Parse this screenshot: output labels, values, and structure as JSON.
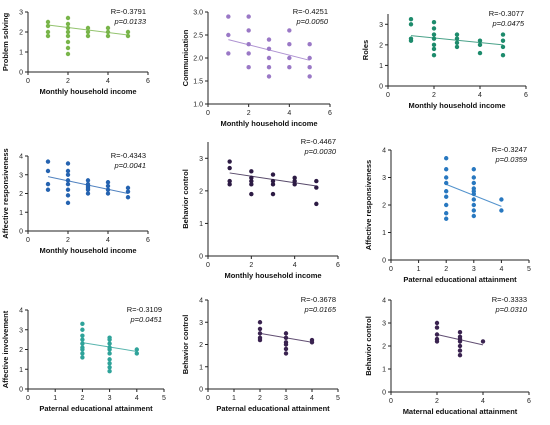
{
  "chart_data": [
    {
      "type": "scatter",
      "ylabel": "Problem solving",
      "xlabel": "Monthly household income",
      "xlim": [
        0,
        6
      ],
      "ylim": [
        0,
        3
      ],
      "xticks": [
        "0",
        "2",
        "4",
        "6"
      ],
      "yticks": [
        "0",
        "1",
        "2",
        "3"
      ],
      "stats": [
        "R=-0.3791",
        "p=0.0133"
      ],
      "color": "#79b54a",
      "x": [
        1,
        1,
        1,
        1,
        2,
        2,
        2,
        2,
        2,
        2,
        2,
        2,
        3,
        3,
        3,
        4,
        4,
        4,
        5,
        5
      ],
      "y": [
        2.5,
        2.3,
        2.0,
        1.8,
        2.7,
        2.4,
        2.2,
        2.0,
        1.8,
        1.5,
        1.2,
        0.9,
        2.2,
        2.0,
        1.8,
        2.2,
        2.0,
        1.8,
        2.0,
        1.8
      ],
      "fit": [
        [
          1,
          2.35
        ],
        [
          5,
          1.85
        ]
      ]
    },
    {
      "type": "scatter",
      "ylabel": "Communication",
      "xlabel": "Monthly household income",
      "xlim": [
        0,
        6
      ],
      "ylim": [
        1,
        3
      ],
      "xticks": [
        "0",
        "2",
        "4",
        "6"
      ],
      "yticks": [
        "1.0",
        "1.5",
        "2.0",
        "2.5",
        "3.0"
      ],
      "stats": [
        "R=-0.4251",
        "p=0.0050"
      ],
      "color": "#9a78c6",
      "x": [
        1,
        1,
        1,
        2,
        2,
        2,
        2,
        2,
        3,
        3,
        3,
        3,
        3,
        4,
        4,
        4,
        4,
        5,
        5,
        5,
        5
      ],
      "y": [
        2.9,
        2.5,
        2.1,
        2.9,
        2.6,
        2.3,
        2.1,
        1.8,
        2.4,
        2.2,
        2.0,
        1.8,
        1.6,
        2.6,
        2.3,
        2.0,
        1.8,
        2.3,
        2.0,
        1.8,
        1.6
      ],
      "fit": [
        [
          1,
          2.4
        ],
        [
          5,
          1.95
        ]
      ]
    },
    {
      "type": "scatter",
      "ylabel": "Roles",
      "xlabel": "Monthly household income",
      "xlim": [
        0,
        6
      ],
      "ylim": [
        0,
        3.5
      ],
      "xticks": [
        "0",
        "2",
        "4",
        "6"
      ],
      "yticks": [
        "0",
        "1",
        "2",
        "3"
      ],
      "stats": [
        "R=-0.3077",
        "p=0.0475"
      ],
      "color": "#1d8b6c",
      "x": [
        1,
        1,
        1,
        1,
        2,
        2,
        2,
        2,
        2,
        2,
        2,
        3,
        3,
        3,
        3,
        4,
        4,
        4,
        5,
        5,
        5,
        5
      ],
      "y": [
        3.25,
        3.0,
        2.3,
        2.2,
        3.1,
        2.8,
        2.5,
        2.3,
        2.0,
        1.8,
        1.5,
        2.5,
        2.3,
        2.1,
        1.9,
        2.2,
        2.0,
        1.6,
        2.5,
        2.2,
        1.9,
        1.5
      ],
      "fit": [
        [
          1,
          2.45
        ],
        [
          5,
          2.0
        ]
      ]
    },
    {
      "type": "scatter",
      "ylabel": "Affective responsiveness",
      "xlabel": "Monthly household income",
      "xlim": [
        0,
        6
      ],
      "ylim": [
        0,
        4
      ],
      "xticks": [
        "0",
        "2",
        "4",
        "6"
      ],
      "yticks": [
        "0",
        "1",
        "2",
        "3",
        "4"
      ],
      "stats": [
        "R=-0.4343",
        "p=0.0041"
      ],
      "color": "#2563b0",
      "x": [
        1,
        1,
        1,
        1,
        2,
        2,
        2,
        2,
        2,
        2,
        2,
        2,
        3,
        3,
        3,
        3,
        3,
        3,
        4,
        4,
        4,
        4,
        5,
        5,
        5
      ],
      "y": [
        3.7,
        3.2,
        2.5,
        2.2,
        3.6,
        3.2,
        3.0,
        2.7,
        2.5,
        2.2,
        1.9,
        1.5,
        2.7,
        2.5,
        2.4,
        2.3,
        2.2,
        2.0,
        2.6,
        2.4,
        2.2,
        2.0,
        2.3,
        2.1,
        1.8
      ],
      "fit": [
        [
          1,
          2.9
        ],
        [
          5,
          2.0
        ]
      ]
    },
    {
      "type": "scatter",
      "ylabel": "Behavior control",
      "xlabel": "Monthly household income",
      "xlim": [
        0,
        6
      ],
      "ylim": [
        0,
        3.5
      ],
      "xticks": [
        "0",
        "2",
        "4",
        "6"
      ],
      "yticks": [
        "0",
        "1",
        "2",
        "3"
      ],
      "stats": [
        "R=-0.4467",
        "p=0.0030"
      ],
      "color": "#2d1b44",
      "x": [
        1,
        1,
        1,
        1,
        2,
        2,
        2,
        2,
        2,
        3,
        3,
        3,
        3,
        4,
        4,
        4,
        5,
        5,
        5
      ],
      "y": [
        2.9,
        2.7,
        2.3,
        2.2,
        2.6,
        2.4,
        2.3,
        2.2,
        1.9,
        2.5,
        2.3,
        2.2,
        1.9,
        2.4,
        2.3,
        2.2,
        2.3,
        2.1,
        1.6
      ],
      "fit": [
        [
          1,
          2.55
        ],
        [
          5,
          2.15
        ]
      ]
    },
    {
      "type": "scatter",
      "ylabel": "Affective responsiveness",
      "xlabel": "Paternal educational attainment",
      "xlim": [
        0,
        5
      ],
      "ylim": [
        0,
        4
      ],
      "xticks": [
        "0",
        "1",
        "2",
        "3",
        "4",
        "5"
      ],
      "yticks": [
        "0",
        "1",
        "2",
        "3",
        "4"
      ],
      "stats": [
        "R=-0.3247",
        "p=0.0359"
      ],
      "color": "#2878c0",
      "x": [
        2,
        2,
        2,
        2,
        2,
        2,
        2,
        2,
        2,
        3,
        3,
        3,
        3,
        3,
        3,
        3,
        3,
        3,
        3,
        4,
        4
      ],
      "y": [
        3.7,
        3.3,
        3.0,
        2.8,
        2.5,
        2.3,
        2.0,
        1.7,
        1.5,
        3.3,
        3.0,
        2.8,
        2.6,
        2.5,
        2.4,
        2.2,
        2.0,
        1.8,
        1.6,
        2.2,
        1.8
      ],
      "fit": [
        [
          2,
          2.75
        ],
        [
          4,
          1.95
        ]
      ]
    },
    {
      "type": "scatter",
      "ylabel": "Affective involvement",
      "xlabel": "Paternal educational attainment",
      "xlim": [
        0,
        5
      ],
      "ylim": [
        0,
        4
      ],
      "xticks": [
        "0",
        "1",
        "2",
        "3",
        "4",
        "5"
      ],
      "yticks": [
        "0",
        "1",
        "2",
        "3",
        "4"
      ],
      "stats": [
        "R=-0.3109",
        "p=0.0451"
      ],
      "color": "#2fa39a",
      "x": [
        2,
        2,
        2,
        2,
        2,
        2,
        2,
        2,
        2,
        3,
        3,
        3,
        3,
        3,
        3,
        3,
        3,
        3,
        3,
        4,
        4
      ],
      "y": [
        3.3,
        3.0,
        2.7,
        2.5,
        2.3,
        2.1,
        2.0,
        1.8,
        1.6,
        2.6,
        2.5,
        2.3,
        2.1,
        2.0,
        1.8,
        1.5,
        1.3,
        1.1,
        0.9,
        2.0,
        1.8
      ],
      "fit": [
        [
          2,
          2.35
        ],
        [
          4,
          1.9
        ]
      ]
    },
    {
      "type": "scatter",
      "ylabel": "Behavior control",
      "xlabel": "Paternal educational attainment",
      "xlim": [
        0,
        5
      ],
      "ylim": [
        0,
        4
      ],
      "xticks": [
        "0",
        "1",
        "2",
        "3",
        "4",
        "5"
      ],
      "yticks": [
        "0",
        "1",
        "2",
        "3",
        "4"
      ],
      "stats": [
        "R=-0.3678",
        "p=0.0165"
      ],
      "color": "#3a2350",
      "x": [
        2,
        2,
        2,
        2,
        2,
        3,
        3,
        3,
        3,
        3,
        3,
        4,
        4
      ],
      "y": [
        3.0,
        2.7,
        2.5,
        2.3,
        2.2,
        2.5,
        2.3,
        2.1,
        2.0,
        1.8,
        1.6,
        2.2,
        2.1
      ],
      "fit": [
        [
          2,
          2.5
        ],
        [
          4,
          2.1
        ]
      ]
    },
    {
      "type": "scatter",
      "ylabel": "Behavior control",
      "xlabel": "Maternal educational attainment",
      "xlim": [
        0,
        6
      ],
      "ylim": [
        0,
        4
      ],
      "xticks": [
        "0",
        "2",
        "4",
        "6"
      ],
      "yticks": [
        "0",
        "1",
        "2",
        "3",
        "4"
      ],
      "stats": [
        "R=-0.3333",
        "p=0.0310"
      ],
      "color": "#3a2350",
      "x": [
        2,
        2,
        2,
        2,
        2,
        3,
        3,
        3,
        3,
        3,
        3,
        3,
        4
      ],
      "y": [
        3.0,
        2.8,
        2.5,
        2.3,
        2.2,
        2.6,
        2.4,
        2.3,
        2.2,
        2.0,
        1.8,
        1.6,
        2.2
      ],
      "fit": [
        [
          2,
          2.5
        ],
        [
          4,
          2.05
        ]
      ]
    }
  ]
}
